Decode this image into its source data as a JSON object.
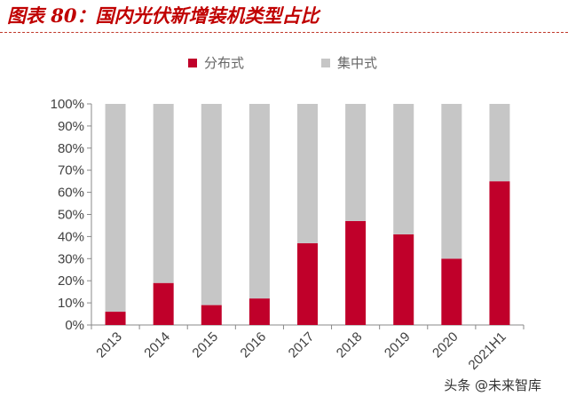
{
  "header": {
    "title": "图表 80：国内光伏新增装机类型占比"
  },
  "watermark": "头条 @未来智库",
  "colors": {
    "distributed": "#c0002a",
    "centralized": "#c6c6c6",
    "title": "#c00000",
    "axis": "#888888",
    "text": "#404040"
  },
  "chart_data": {
    "type": "bar",
    "stacked": true,
    "categories": [
      "2013",
      "2014",
      "2015",
      "2016",
      "2017",
      "2018",
      "2019",
      "2020",
      "2021H1"
    ],
    "series": [
      {
        "name": "分布式",
        "values": [
          6,
          19,
          9,
          12,
          37,
          47,
          41,
          30,
          65
        ]
      },
      {
        "name": "集中式",
        "values": [
          94,
          81,
          91,
          88,
          63,
          53,
          59,
          70,
          35
        ]
      }
    ],
    "ylim": [
      0,
      100
    ],
    "yticks": [
      "0%",
      "10%",
      "20%",
      "30%",
      "40%",
      "50%",
      "60%",
      "70%",
      "80%",
      "90%",
      "100%"
    ],
    "legend": "top-center",
    "grid": false,
    "xlabel": "",
    "ylabel": ""
  }
}
